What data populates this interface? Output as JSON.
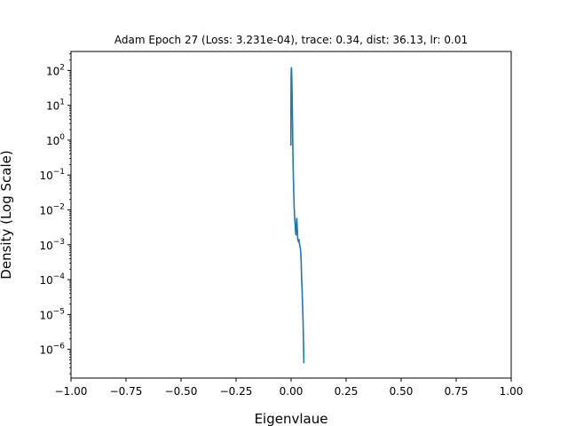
{
  "chart_data": {
    "type": "line",
    "title": "Adam Epoch 27 (Loss: 3.231e-04), trace: 0.34, dist: 36.13, lr: 0.01",
    "xlabel": "Eigenvlaue",
    "ylabel": "Density (Log Scale)",
    "yscale": "log",
    "xlim": [
      -1.0,
      1.0
    ],
    "ylim": [
      1.5e-07,
      350
    ],
    "grid": false,
    "x_ticks": [
      -1.0,
      -0.75,
      -0.5,
      -0.25,
      0.0,
      0.25,
      0.5,
      0.75,
      1.0
    ],
    "x_tick_labels": [
      "−1.00",
      "−0.75",
      "−0.50",
      "−0.25",
      "0.00",
      "0.25",
      "0.50",
      "0.75",
      "1.00"
    ],
    "y_ticks": [
      {
        "value": 100,
        "base": "10",
        "exp": "2"
      },
      {
        "value": 10,
        "base": "10",
        "exp": "1"
      },
      {
        "value": 1,
        "base": "10",
        "exp": "0"
      },
      {
        "value": 0.1,
        "base": "10",
        "exp": "−1"
      },
      {
        "value": 0.01,
        "base": "10",
        "exp": "−2"
      },
      {
        "value": 0.001,
        "base": "10",
        "exp": "−3"
      },
      {
        "value": 0.0001,
        "base": "10",
        "exp": "−4"
      },
      {
        "value": 1e-05,
        "base": "10",
        "exp": "−5"
      },
      {
        "value": 1e-06,
        "base": "10",
        "exp": "−6"
      }
    ],
    "series": [
      {
        "color": "#1f77b4",
        "x": [
          -0.001,
          -0.0008,
          -0.0005,
          0.0,
          0.001,
          0.002,
          0.003,
          0.004,
          0.006,
          0.008,
          0.01,
          0.012,
          0.014,
          0.016,
          0.018,
          0.02,
          0.022,
          0.024,
          0.025,
          0.026,
          0.028,
          0.03,
          0.032,
          0.034,
          0.036,
          0.038,
          0.04,
          0.042,
          0.044,
          0.046,
          0.048,
          0.05,
          0.052,
          0.054,
          0.056,
          0.058
        ],
        "y": [
          0.7,
          3.0,
          15,
          60,
          120,
          110,
          70,
          30,
          5,
          0.5,
          0.1,
          0.03,
          0.012,
          0.006,
          0.004,
          0.0025,
          0.0019,
          0.003,
          0.0055,
          0.0057,
          0.003,
          0.0015,
          0.0013,
          0.0012,
          0.0014,
          0.0011,
          0.0009,
          0.0008,
          0.0006,
          0.0003,
          0.0001,
          5e-05,
          2e-05,
          8e-06,
          2e-06,
          4e-07
        ]
      }
    ]
  }
}
